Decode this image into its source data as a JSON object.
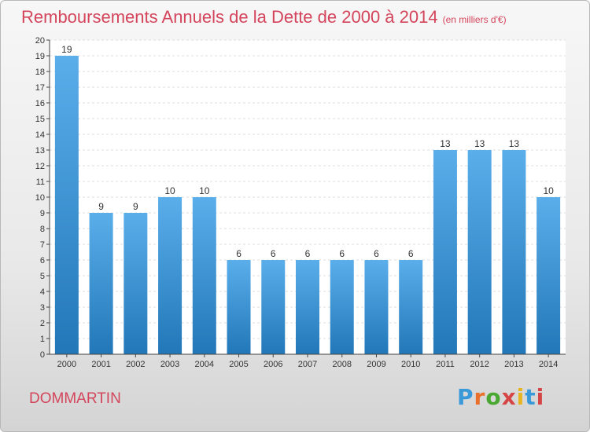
{
  "header": {
    "title": "Remboursements Annuels de la Dette de 2000 à 2014",
    "unit": "(en milliers d'€)"
  },
  "footer": {
    "city": "DOMMARTIN",
    "brand_letters": [
      "P",
      "r",
      "o",
      "x",
      "i",
      "t",
      "i"
    ],
    "brand_colors": [
      "#3a9ad9",
      "#e8702a",
      "#4aa832",
      "#d64545",
      "#e8b520",
      "#3a9ad9",
      "#d64545"
    ]
  },
  "colors": {
    "bar_top": "#5aaeea",
    "bar_bottom": "#2277b8",
    "title": "#d4455c"
  },
  "chart_data": {
    "type": "bar",
    "title": "Remboursements Annuels de la Dette de 2000 à 2014",
    "xlabel": "",
    "ylabel": "",
    "categories": [
      "2000",
      "2001",
      "2002",
      "2003",
      "2004",
      "2005",
      "2006",
      "2007",
      "2008",
      "2009",
      "2010",
      "2011",
      "2012",
      "2013",
      "2014"
    ],
    "values": [
      19,
      9,
      9,
      10,
      10,
      6,
      6,
      6,
      6,
      6,
      6,
      13,
      13,
      13,
      10
    ],
    "ylim": [
      0,
      20
    ],
    "yticks": [
      "0",
      "1",
      "2",
      "3",
      "4",
      "5",
      "6",
      "7",
      "8",
      "9",
      "10",
      "11",
      "12",
      "13",
      "14",
      "15",
      "16",
      "17",
      "18",
      "19",
      "20"
    ],
    "grid": true,
    "legend": "none"
  }
}
